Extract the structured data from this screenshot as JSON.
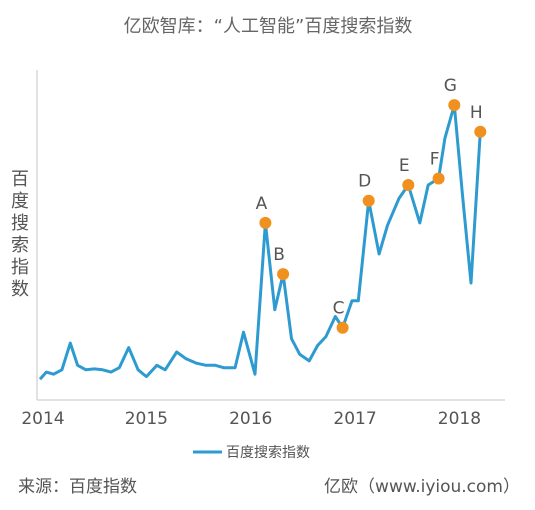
{
  "chart_data": {
    "type": "line",
    "title": "亿欧智库：“人工智能”百度搜索指数",
    "ylabel": "百度搜索指数",
    "xlabel": "",
    "x_ticks": [
      "2014",
      "2015",
      "2016",
      "2017",
      "2018"
    ],
    "xlim": [
      2014.0,
      2018.6
    ],
    "ylim": [
      0,
      100
    ],
    "grid": false,
    "legend_position": "bottom",
    "series": [
      {
        "name": "百度搜索指数",
        "color": "#2e9bd0",
        "points": [
          [
            2014.0,
            0.6
          ],
          [
            2014.06,
            3.0
          ],
          [
            2014.13,
            2.3
          ],
          [
            2014.21,
            3.8
          ],
          [
            2014.29,
            12.8
          ],
          [
            2014.36,
            5.3
          ],
          [
            2014.44,
            3.8
          ],
          [
            2014.52,
            4.1
          ],
          [
            2014.6,
            3.8
          ],
          [
            2014.68,
            3.0
          ],
          [
            2014.76,
            4.5
          ],
          [
            2014.85,
            11.3
          ],
          [
            2014.94,
            3.8
          ],
          [
            2015.02,
            1.5
          ],
          [
            2015.12,
            5.3
          ],
          [
            2015.2,
            3.8
          ],
          [
            2015.31,
            9.8
          ],
          [
            2015.4,
            7.5
          ],
          [
            2015.5,
            6.0
          ],
          [
            2015.59,
            5.3
          ],
          [
            2015.68,
            5.3
          ],
          [
            2015.76,
            4.5
          ],
          [
            2015.87,
            4.5
          ],
          [
            2015.95,
            16.5
          ],
          [
            2016.06,
            2.3
          ],
          [
            2016.16,
            53.4
          ],
          [
            2016.25,
            24.1
          ],
          [
            2016.33,
            36.1
          ],
          [
            2016.41,
            14.3
          ],
          [
            2016.49,
            9.0
          ],
          [
            2016.58,
            6.8
          ],
          [
            2016.66,
            12.0
          ],
          [
            2016.74,
            15.0
          ],
          [
            2016.83,
            21.8
          ],
          [
            2016.9,
            18.0
          ],
          [
            2016.99,
            27.1
          ],
          [
            2017.05,
            27.1
          ],
          [
            2017.15,
            60.9
          ],
          [
            2017.25,
            42.9
          ],
          [
            2017.33,
            52.6
          ],
          [
            2017.44,
            61.7
          ],
          [
            2017.53,
            66.2
          ],
          [
            2017.64,
            53.4
          ],
          [
            2017.72,
            66.2
          ],
          [
            2017.82,
            68.4
          ],
          [
            2017.88,
            82.0
          ],
          [
            2017.97,
            93.2
          ],
          [
            2018.05,
            62.4
          ],
          [
            2018.13,
            33.1
          ],
          [
            2018.22,
            84.2
          ]
        ]
      }
    ],
    "annotations": [
      {
        "label": "A",
        "x": 2016.16,
        "y": 53.4
      },
      {
        "label": "B",
        "x": 2016.33,
        "y": 36.1
      },
      {
        "label": "C",
        "x": 2016.9,
        "y": 18.0
      },
      {
        "label": "D",
        "x": 2017.15,
        "y": 60.9
      },
      {
        "label": "E",
        "x": 2017.53,
        "y": 66.2
      },
      {
        "label": "F",
        "x": 2017.82,
        "y": 68.4
      },
      {
        "label": "G",
        "x": 2017.97,
        "y": 93.2
      },
      {
        "label": "H",
        "x": 2018.22,
        "y": 84.2
      }
    ],
    "marker_color": "#f0901f"
  },
  "footer": {
    "source": "来源：百度指数",
    "credit": "亿欧（www.iyiou.com）"
  }
}
